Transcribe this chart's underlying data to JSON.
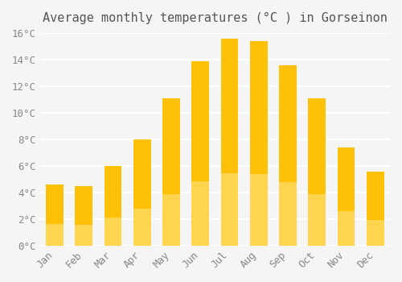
{
  "months": [
    "Jan",
    "Feb",
    "Mar",
    "Apr",
    "May",
    "Jun",
    "Jul",
    "Aug",
    "Sep",
    "Oct",
    "Nov",
    "Dec"
  ],
  "temperatures": [
    4.6,
    4.5,
    6.0,
    8.0,
    11.1,
    13.9,
    15.6,
    15.4,
    13.6,
    11.1,
    7.4,
    5.6
  ],
  "title": "Average monthly temperatures (°C ) in Gorseinon",
  "bar_color_top": "#FFC107",
  "bar_color_bottom": "#FFD54F",
  "ylim": [
    0,
    16
  ],
  "yticks": [
    0,
    2,
    4,
    6,
    8,
    10,
    12,
    14,
    16
  ],
  "ytick_labels": [
    "0°C",
    "2°C",
    "4°C",
    "6°C",
    "8°C",
    "10°C",
    "12°C",
    "14°C",
    "16°C"
  ],
  "background_color": "#f5f5f5",
  "grid_color": "#ffffff",
  "title_fontsize": 11,
  "tick_fontsize": 9,
  "font_family": "monospace"
}
